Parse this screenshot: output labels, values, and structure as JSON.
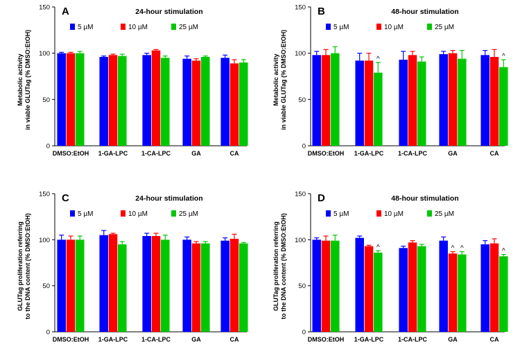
{
  "legend": {
    "items": [
      {
        "label": "5 µM",
        "color": "#0000ff"
      },
      {
        "label": "10 µM",
        "color": "#ff0000"
      },
      {
        "label": "25 µM",
        "color": "#00c800"
      }
    ]
  },
  "chart_data": [
    {
      "type": "bar",
      "panel": "A",
      "title": "24-hour stimulation",
      "ylabel_lines": [
        "Metabolic activity",
        "in viable GLUTag (% DMSO:EtOH)"
      ],
      "ylim": [
        0,
        150
      ],
      "yticks": [
        0,
        50,
        100,
        150
      ],
      "categories": [
        "DMSO:EtOH",
        "1-GA-LPC",
        "1-CA-LPC",
        "GA",
        "CA"
      ],
      "series": [
        {
          "name": "5 µM",
          "values": [
            100,
            96,
            98,
            94,
            95
          ],
          "errors": [
            1,
            1,
            2,
            3,
            3
          ]
        },
        {
          "name": "10 µM",
          "values": [
            100,
            98,
            103,
            92,
            89
          ],
          "errors": [
            1,
            1,
            1,
            2,
            4
          ]
        },
        {
          "name": "25 µM",
          "values": [
            100,
            97,
            95,
            96,
            90
          ],
          "errors": [
            2,
            2,
            2,
            1,
            3
          ]
        }
      ],
      "significance": []
    },
    {
      "type": "bar",
      "panel": "B",
      "title": "48-hour stimulation",
      "ylabel_lines": [
        "Metabolic activity",
        "in viable GLUTag (% DMSO:EtOH)"
      ],
      "ylim": [
        0,
        150
      ],
      "yticks": [
        0,
        50,
        100,
        150
      ],
      "categories": [
        "DMSO:EtOH",
        "1-GA-LPC",
        "1-CA-LPC",
        "GA",
        "CA"
      ],
      "series": [
        {
          "name": "5 µM",
          "values": [
            98,
            92,
            93,
            99,
            98
          ],
          "errors": [
            4,
            8,
            9,
            3,
            5
          ]
        },
        {
          "name": "10 µM",
          "values": [
            98,
            92,
            98,
            100,
            96
          ],
          "errors": [
            6,
            8,
            4,
            3,
            8
          ]
        },
        {
          "name": "25 µM",
          "values": [
            100,
            79,
            91,
            94,
            85
          ],
          "errors": [
            7,
            11,
            5,
            9,
            8
          ]
        }
      ],
      "significance": [
        {
          "category": 1,
          "series": 2,
          "mark": "^"
        },
        {
          "category": 4,
          "series": 2,
          "mark": "^"
        }
      ]
    },
    {
      "type": "bar",
      "panel": "C",
      "title": "24-hour stimulation",
      "ylabel_lines": [
        "GLUTag proliferation referring",
        "to the DNA content (% DMSO:EtOH)"
      ],
      "ylim": [
        0,
        150
      ],
      "yticks": [
        0,
        50,
        100,
        150
      ],
      "categories": [
        "DMSO:EtOH",
        "1-GA-LPC",
        "1-CA-LPC",
        "GA",
        "CA"
      ],
      "series": [
        {
          "name": "5 µM",
          "values": [
            100,
            105,
            104,
            100,
            99
          ],
          "errors": [
            5,
            5,
            3,
            3,
            3
          ]
        },
        {
          "name": "10 µM",
          "values": [
            100,
            106,
            104,
            96,
            101
          ],
          "errors": [
            4,
            1,
            3,
            2,
            5
          ]
        },
        {
          "name": "25 µM",
          "values": [
            100,
            95,
            100,
            96,
            96
          ],
          "errors": [
            4,
            3,
            5,
            2,
            1
          ]
        }
      ],
      "significance": []
    },
    {
      "type": "bar",
      "panel": "D",
      "title": "48-hour stimulation",
      "ylabel_lines": [
        "GLUTag proliferation referring",
        "to the DNA content (% DMSO:EtOH)"
      ],
      "ylim": [
        0,
        150
      ],
      "yticks": [
        0,
        50,
        100,
        150
      ],
      "categories": [
        "DMSO:EtOH",
        "1-GA-LPC",
        "1-CA-LPC",
        "GA",
        "CA"
      ],
      "series": [
        {
          "name": "5 µM",
          "values": [
            100,
            102,
            91,
            99,
            95
          ],
          "errors": [
            2,
            2,
            2,
            4,
            4
          ]
        },
        {
          "name": "10 µM",
          "values": [
            99,
            93,
            97,
            85,
            96
          ],
          "errors": [
            5,
            1,
            2,
            2,
            5
          ]
        },
        {
          "name": "25 µM",
          "values": [
            99,
            86,
            93,
            84,
            82
          ],
          "errors": [
            6,
            2,
            2,
            3,
            2
          ]
        }
      ],
      "significance": [
        {
          "category": 1,
          "series": 2,
          "mark": "^"
        },
        {
          "category": 3,
          "series": 1,
          "mark": "^"
        },
        {
          "category": 3,
          "series": 2,
          "mark": "^"
        },
        {
          "category": 4,
          "series": 2,
          "mark": "^"
        }
      ]
    }
  ]
}
